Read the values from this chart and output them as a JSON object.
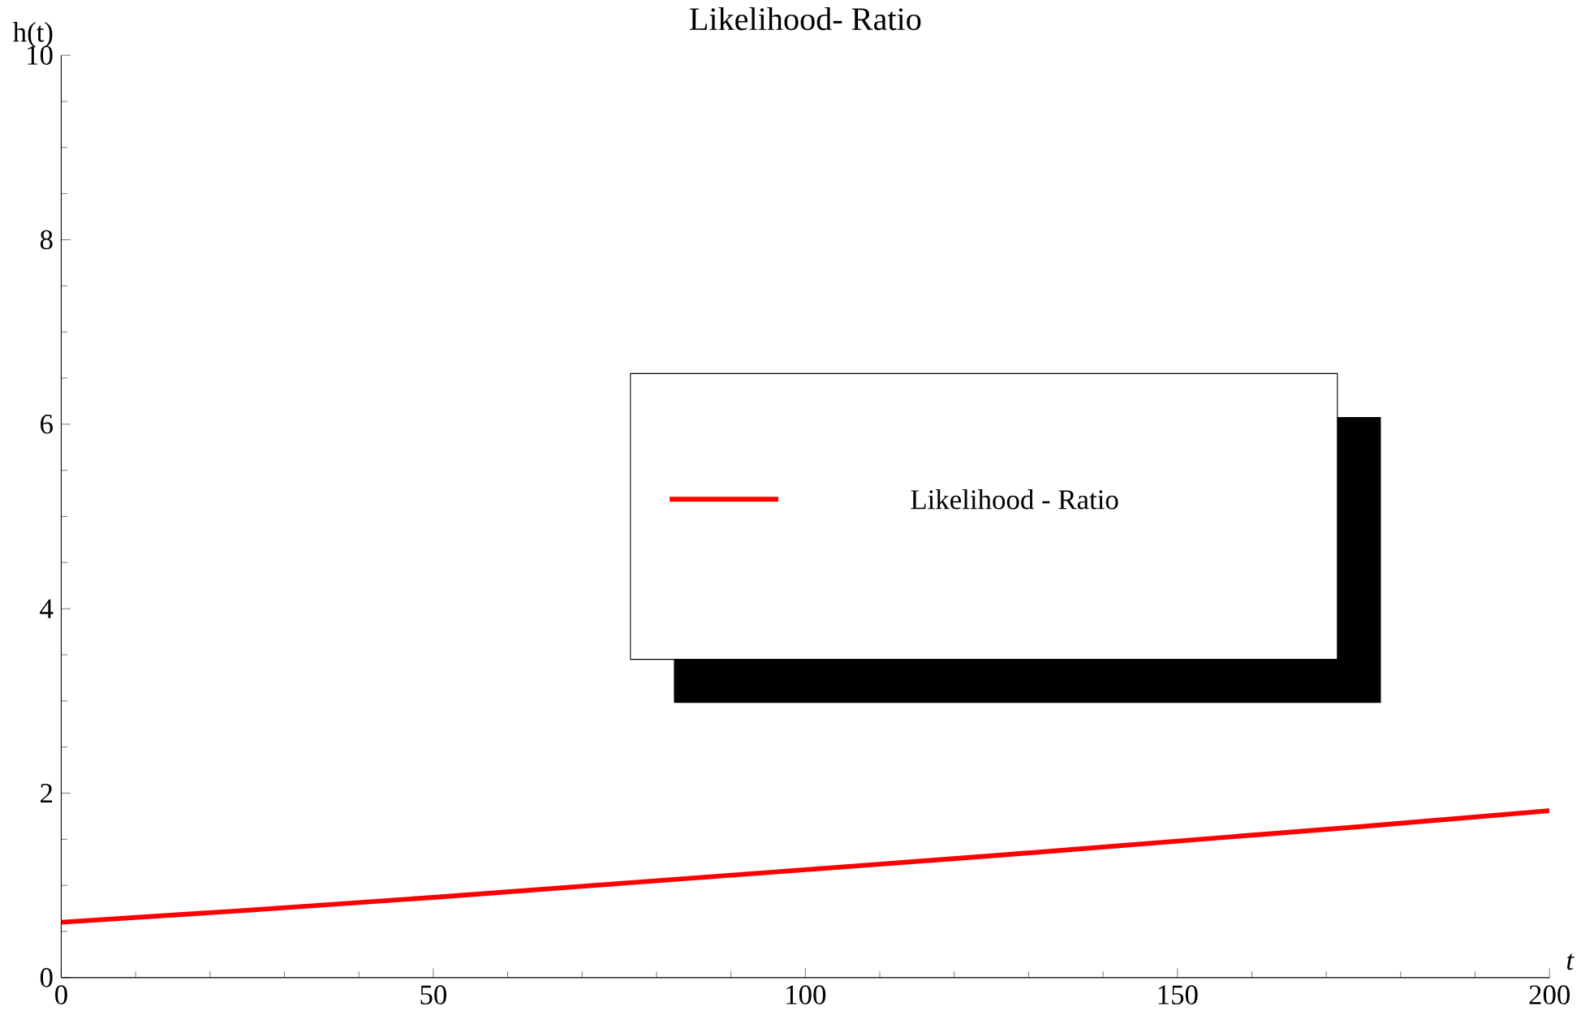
{
  "chart_data": {
    "type": "line",
    "title": "Likelihood- Ratio",
    "xlabel": "t",
    "ylabel": "h(t)",
    "x": [
      0,
      25,
      50,
      75,
      100,
      125,
      150,
      175,
      200
    ],
    "series": [
      {
        "name": "Likelihood - Ratio",
        "color": "#ff0000",
        "values": [
          0.6,
          0.73,
          0.87,
          1.02,
          1.17,
          1.32,
          1.48,
          1.64,
          1.81
        ]
      }
    ],
    "xlim": [
      0,
      200
    ],
    "ylim": [
      0,
      10
    ],
    "xticks": [
      0,
      50,
      100,
      150,
      200
    ],
    "yticks": [
      0,
      2,
      4,
      6,
      8,
      10
    ],
    "grid": false,
    "legend": "center",
    "marker": "none",
    "line_style": "solid"
  }
}
